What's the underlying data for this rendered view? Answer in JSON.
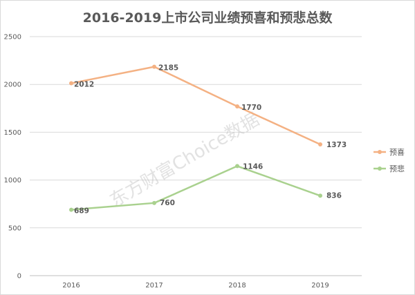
{
  "chart_data": {
    "type": "line",
    "title": "2016-2019上市公司业绩预喜和预悲总数",
    "x": [
      "2016",
      "2017",
      "2018",
      "2019"
    ],
    "ylim": [
      0,
      2500
    ],
    "yticks": [
      0,
      500,
      1000,
      1500,
      2000,
      2500
    ],
    "grid": true,
    "legend_position": "right",
    "series": [
      {
        "name": "预喜",
        "color": "#f4b183",
        "values": [
          2012,
          2185,
          1770,
          1373
        ]
      },
      {
        "name": "预悲",
        "color": "#a9d18e",
        "values": [
          689,
          760,
          1146,
          836
        ]
      }
    ],
    "watermark": "东方财富Choice数据"
  }
}
